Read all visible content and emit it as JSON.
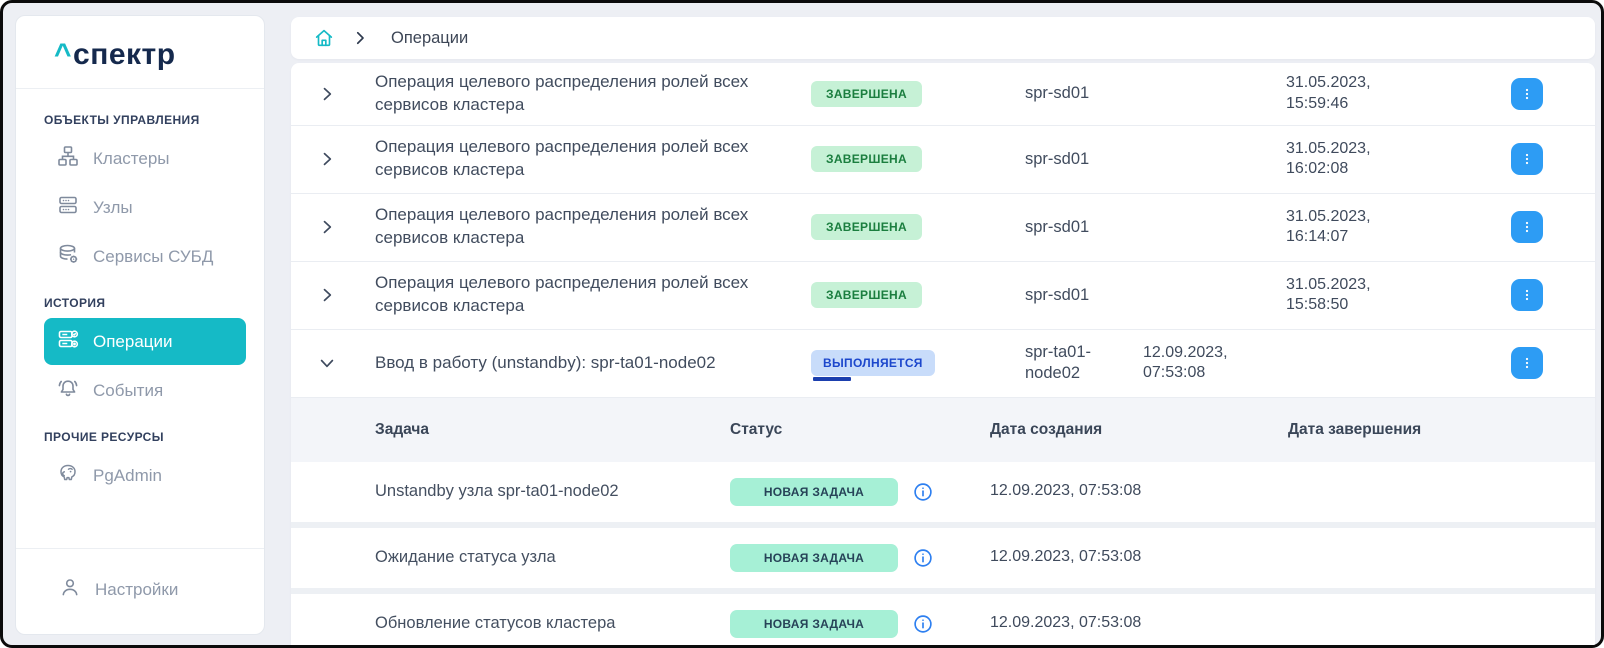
{
  "app": {
    "logo_caret": "^",
    "logo_text": "спектр"
  },
  "colors": {
    "accent_teal": "#15bac6",
    "logo_navy": "#15294d",
    "kebab_blue": "#2d9cf4",
    "info_blue": "#2d7ff0",
    "badge_completed_bg": "#c6f1d6",
    "badge_completed_text": "#1b7e3f",
    "badge_running_bg": "#c8dcfa",
    "badge_running_text": "#1c47cc",
    "badge_new_task_bg": "#a6f0d6",
    "page_bg": "#edeff4"
  },
  "sidebar": {
    "sections": [
      {
        "label": "ОБЪЕКТЫ УПРАВЛЕНИЯ",
        "items": [
          {
            "label": "Кластеры",
            "icon": "clusters-icon"
          },
          {
            "label": "Узлы",
            "icon": "nodes-icon"
          },
          {
            "label": "Сервисы СУБД",
            "icon": "db-services-icon"
          }
        ]
      },
      {
        "label": "ИСТОРИЯ",
        "items": [
          {
            "label": "Операции",
            "icon": "operations-icon",
            "active": true
          },
          {
            "label": "События",
            "icon": "events-icon"
          }
        ]
      },
      {
        "label": "ПРОЧИЕ РЕСУРСЫ",
        "items": [
          {
            "label": "PgAdmin",
            "icon": "pgadmin-icon"
          }
        ]
      }
    ],
    "footer": {
      "label": "Настройки",
      "icon": "user-icon"
    }
  },
  "breadcrumb": {
    "home_icon": "home-icon",
    "current": "Операции"
  },
  "operations": {
    "rows": [
      {
        "name": "Операция целевого распределения ролей всех сервисов кластера",
        "status": "ЗАВЕРШЕНА",
        "status_type": "completed",
        "object": "spr-sd01",
        "date_created": "",
        "date_completed": "31.05.2023, 15:59:46",
        "expanded": false
      },
      {
        "name": "Операция целевого распределения ролей всех сервисов кластера",
        "status": "ЗАВЕРШЕНА",
        "status_type": "completed",
        "object": "spr-sd01",
        "date_created": "",
        "date_completed": "31.05.2023, 16:02:08",
        "expanded": false
      },
      {
        "name": "Операция целевого распределения ролей всех сервисов кластера",
        "status": "ЗАВЕРШЕНА",
        "status_type": "completed",
        "object": "spr-sd01",
        "date_created": "",
        "date_completed": "31.05.2023, 16:14:07",
        "expanded": false
      },
      {
        "name": "Операция целевого распределения ролей всех сервисов кластера",
        "status": "ЗАВЕРШЕНА",
        "status_type": "completed",
        "object": "spr-sd01",
        "date_created": "",
        "date_completed": "31.05.2023, 15:58:50",
        "expanded": false
      },
      {
        "name": "Ввод в работу (unstandby): spr-ta01-node02",
        "status": "ВЫПОЛНЯЕТСЯ",
        "status_type": "running",
        "object": "spr-ta01-node02",
        "date_created": "12.09.2023, 07:53:08",
        "date_completed": "",
        "expanded": true
      }
    ],
    "subtable": {
      "headers": [
        "Задача",
        "Статус",
        "Дата создания",
        "Дата завершения"
      ],
      "tasks": [
        {
          "name": "Unstandby узла spr-ta01-node02",
          "status": "НОВАЯ ЗАДАЧА",
          "created": "12.09.2023, 07:53:08",
          "completed": ""
        },
        {
          "name": "Ожидание статуса узла",
          "status": "НОВАЯ ЗАДАЧА",
          "created": "12.09.2023, 07:53:08",
          "completed": ""
        },
        {
          "name": "Обновление статусов кластера",
          "status": "НОВАЯ ЗАДАЧА",
          "created": "12.09.2023, 07:53:08",
          "completed": ""
        }
      ]
    }
  }
}
